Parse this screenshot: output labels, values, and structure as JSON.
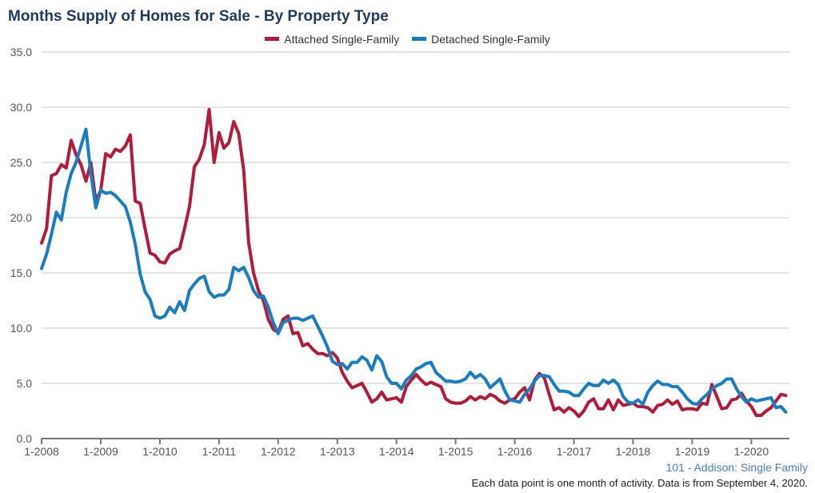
{
  "chart_data": {
    "type": "line",
    "title": "Months Supply of Homes for Sale - By Property Type",
    "xlabel": "",
    "ylabel": "",
    "x_start": "1-2008",
    "x_interval": "monthly",
    "x_ticks": [
      "1-2008",
      "1-2009",
      "1-2010",
      "1-2011",
      "1-2012",
      "1-2013",
      "1-2014",
      "1-2015",
      "1-2016",
      "1-2017",
      "1-2018",
      "1-2019",
      "1-2020"
    ],
    "y_ticks": [
      "0.0",
      "5.0",
      "10.0",
      "15.0",
      "20.0",
      "25.0",
      "30.0",
      "35.0"
    ],
    "ylim": [
      0,
      35
    ],
    "grid": true,
    "legend_position": "top-center",
    "series": [
      {
        "name": "Attached Single-Family",
        "color": "#b01c3a",
        "values": [
          17.7,
          19.0,
          23.8,
          24.0,
          24.8,
          24.5,
          27.0,
          25.7,
          24.8,
          23.3,
          25.0,
          21.5,
          22.5,
          25.8,
          25.5,
          26.2,
          26.0,
          26.5,
          27.5,
          21.5,
          21.3,
          19.0,
          16.8,
          16.6,
          16.0,
          15.9,
          16.7,
          17.0,
          17.2,
          19.0,
          21.0,
          24.6,
          25.3,
          26.6,
          29.8,
          25.0,
          27.7,
          26.3,
          26.8,
          28.7,
          27.6,
          24.3,
          17.8,
          15.0,
          13.4,
          12.5,
          10.8,
          9.9,
          9.6,
          10.8,
          11.1,
          9.5,
          9.6,
          8.4,
          8.6,
          8.1,
          7.7,
          7.7,
          7.5,
          7.8,
          7.3,
          6.0,
          5.2,
          4.6,
          4.8,
          5.0,
          4.2,
          3.3,
          3.6,
          4.2,
          3.5,
          3.6,
          3.7,
          3.3,
          4.7,
          5.3,
          5.8,
          5.3,
          4.9,
          5.1,
          4.9,
          4.7,
          3.6,
          3.3,
          3.2,
          3.2,
          3.4,
          3.8,
          3.5,
          3.8,
          3.6,
          4.0,
          3.8,
          3.4,
          3.2,
          3.5,
          3.6,
          4.2,
          4.6,
          3.5,
          5.3,
          5.9,
          5.5,
          4.0,
          2.6,
          2.8,
          2.4,
          2.8,
          2.5,
          2.0,
          2.5,
          3.3,
          3.6,
          2.7,
          2.7,
          3.5,
          2.6,
          3.5,
          3.0,
          3.1,
          3.2,
          2.9,
          2.9,
          2.8,
          2.4,
          3.0,
          3.1,
          3.5,
          3.1,
          3.4,
          2.6,
          2.7,
          2.7,
          2.6,
          3.2,
          3.1,
          4.9,
          3.8,
          2.7,
          2.8,
          3.5,
          3.6,
          4.1,
          3.4,
          2.9,
          2.1,
          2.1,
          2.5,
          2.8,
          3.4,
          4.0,
          3.9
        ]
      },
      {
        "name": "Detached Single-Family",
        "color": "#1a7dc0",
        "values": [
          15.4,
          16.7,
          18.5,
          20.5,
          19.8,
          22.3,
          24.0,
          25.0,
          26.5,
          28.0,
          24.0,
          20.9,
          22.5,
          22.2,
          22.3,
          22.0,
          21.5,
          21.0,
          19.6,
          17.6,
          14.9,
          13.3,
          12.6,
          11.1,
          10.9,
          11.1,
          11.9,
          11.4,
          12.4,
          11.6,
          13.4,
          14.0,
          14.5,
          14.7,
          13.3,
          12.8,
          13.0,
          13.0,
          13.5,
          15.5,
          15.2,
          15.5,
          14.6,
          13.4,
          12.8,
          12.9,
          11.9,
          10.5,
          9.5,
          10.5,
          10.7,
          10.9,
          10.9,
          10.7,
          10.9,
          11.1,
          10.2,
          9.3,
          8.3,
          7.0,
          6.7,
          6.8,
          6.3,
          6.9,
          6.9,
          7.4,
          7.1,
          6.2,
          7.5,
          7.0,
          5.6,
          5.0,
          5.0,
          4.5,
          5.3,
          5.7,
          6.3,
          6.5,
          6.8,
          6.9,
          6.0,
          5.6,
          5.2,
          5.2,
          5.1,
          5.2,
          5.4,
          6.0,
          5.5,
          5.8,
          5.4,
          4.6,
          5.0,
          5.4,
          4.3,
          3.5,
          3.4,
          3.3,
          4.0,
          4.5,
          5.2,
          5.7,
          5.7,
          5.6,
          4.9,
          4.3,
          4.3,
          4.2,
          3.9,
          3.9,
          4.5,
          5.0,
          4.8,
          4.8,
          5.3,
          5.0,
          5.3,
          4.9,
          3.8,
          3.3,
          3.2,
          3.5,
          3.1,
          4.2,
          4.8,
          5.2,
          4.9,
          4.9,
          4.7,
          4.7,
          4.2,
          3.6,
          3.2,
          3.1,
          3.6,
          4.0,
          4.5,
          4.8,
          5.0,
          5.4,
          5.4,
          4.5,
          3.8,
          3.3,
          3.6,
          3.4,
          3.5,
          3.6,
          3.7,
          2.8,
          2.9,
          2.4
        ]
      }
    ]
  },
  "footer": {
    "source": "101 - Addison: Single Family",
    "note": "Each data point is one month of activity. Data is from September 4, 2020."
  }
}
